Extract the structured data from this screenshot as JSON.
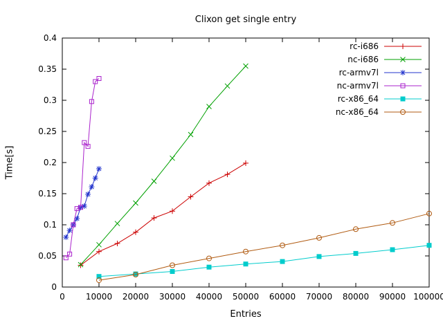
{
  "chart_data": {
    "type": "line",
    "title": "Clixon get single entry",
    "xlabel": "Entries",
    "ylabel": "Time[s]",
    "xlim": [
      0,
      100000
    ],
    "ylim": [
      0,
      0.4
    ],
    "grid": false,
    "legend_position": "top-right-inside",
    "x_ticks": [
      0,
      10000,
      20000,
      30000,
      40000,
      50000,
      60000,
      70000,
      80000,
      90000,
      100000
    ],
    "y_ticks": [
      0,
      0.05,
      0.1,
      0.15,
      0.2,
      0.25,
      0.3,
      0.35,
      0.4
    ],
    "axis_color": "#000000",
    "background_color": "#ffffff",
    "series": [
      {
        "name": "rc-i686",
        "color": "#cc0000",
        "marker": "plus",
        "x": [
          5000,
          10000,
          15000,
          20000,
          25000,
          30000,
          35000,
          40000,
          45000,
          50000
        ],
        "y": [
          0.035,
          0.057,
          0.07,
          0.088,
          0.111,
          0.122,
          0.145,
          0.167,
          0.181,
          0.199
        ]
      },
      {
        "name": "nc-i686",
        "color": "#00a000",
        "marker": "cross",
        "x": [
          5000,
          10000,
          15000,
          20000,
          25000,
          30000,
          35000,
          40000,
          45000,
          50000
        ],
        "y": [
          0.036,
          0.068,
          0.102,
          0.135,
          0.17,
          0.207,
          0.245,
          0.29,
          0.323,
          0.355
        ]
      },
      {
        "name": "rc-armv7l",
        "color": "#2233cc",
        "marker": "asterisk",
        "x": [
          1000,
          2000,
          3000,
          4000,
          5000,
          6000,
          7000,
          8000,
          9000,
          10000
        ],
        "y": [
          0.08,
          0.091,
          0.1,
          0.11,
          0.128,
          0.13,
          0.149,
          0.161,
          0.175,
          0.19
        ]
      },
      {
        "name": "nc-armv7l",
        "color": "#aa22cc",
        "marker": "square-open",
        "x": [
          1000,
          2000,
          3000,
          4000,
          5000,
          6000,
          7000,
          8000,
          9000,
          10000
        ],
        "y": [
          0.047,
          0.053,
          0.1,
          0.126,
          0.128,
          0.232,
          0.226,
          0.298,
          0.33,
          0.335
        ]
      },
      {
        "name": "rc-x86_64",
        "color": "#00cccc",
        "marker": "square-filled",
        "x": [
          10000,
          20000,
          30000,
          40000,
          50000,
          60000,
          70000,
          80000,
          90000,
          100000
        ],
        "y": [
          0.017,
          0.021,
          0.025,
          0.032,
          0.037,
          0.041,
          0.049,
          0.054,
          0.06,
          0.067
        ]
      },
      {
        "name": "nc-x86_64",
        "color": "#b05a10",
        "marker": "circle-open",
        "x": [
          10000,
          20000,
          30000,
          40000,
          50000,
          60000,
          70000,
          80000,
          90000,
          100000
        ],
        "y": [
          0.011,
          0.02,
          0.035,
          0.046,
          0.057,
          0.067,
          0.079,
          0.093,
          0.103,
          0.118
        ]
      }
    ]
  }
}
